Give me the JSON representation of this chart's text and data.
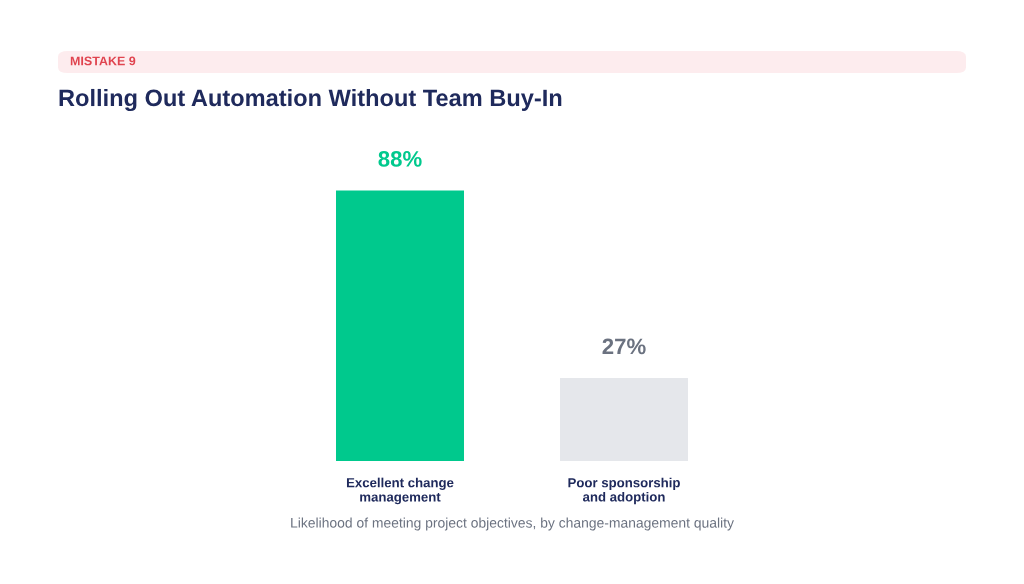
{
  "chart_data": {
    "type": "bar",
    "subtitle": "MISTAKE 9",
    "title": "Rolling Out Automation Without Team Buy-In",
    "categories": [
      "Excellent change\nmanagement",
      "Poor sponsorship\nand adoption"
    ],
    "values": [
      88,
      27
    ],
    "colors": [
      "#00c98d",
      "#e5e7eb"
    ],
    "value_labels": [
      "88%",
      "27%"
    ],
    "annotations": [
      "Likelihood of meeting project objectives, by change-management quality"
    ],
    "grid": false,
    "legend": false
  }
}
